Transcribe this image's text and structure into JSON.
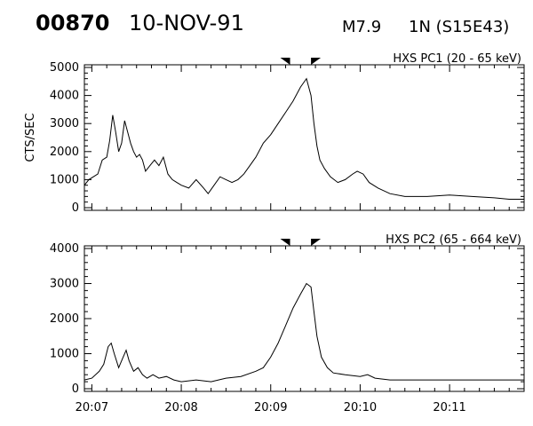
{
  "header": {
    "event_id": "00870",
    "date": "10-NOV-91",
    "goes_class": "M7.9",
    "location": "1N (S15E43)"
  },
  "chart_data": [
    {
      "type": "line",
      "title": "HXS PC1 (20 - 65 keV)",
      "ylabel": "CTS/SEC",
      "xlabel": "",
      "ylim": [
        0,
        5000
      ],
      "yticks": [
        0,
        1000,
        2000,
        3000,
        4000,
        5000
      ],
      "xlim": [
        "20:06:55",
        "20:11:50"
      ],
      "xticks": [
        "20:07",
        "20:08",
        "20:09",
        "20:10",
        "20:11"
      ],
      "markers": [
        "20:09:10",
        "20:09:30"
      ],
      "series": [
        {
          "x": [
            "20:06:55",
            "20:06:58",
            "20:07:01",
            "20:07:04",
            "20:07:07",
            "20:07:10",
            "20:07:12",
            "20:07:14",
            "20:07:16",
            "20:07:18",
            "20:07:20",
            "20:07:22",
            "20:07:24",
            "20:07:26",
            "20:07:28",
            "20:07:30",
            "20:07:32",
            "20:07:34",
            "20:07:36",
            "20:07:39",
            "20:07:42",
            "20:07:45",
            "20:07:48",
            "20:07:51",
            "20:07:54",
            "20:07:57",
            "20:08:00",
            "20:08:05",
            "20:08:10",
            "20:08:15",
            "20:08:18",
            "20:08:22",
            "20:08:26",
            "20:08:30",
            "20:08:34",
            "20:08:38",
            "20:08:42",
            "20:08:46",
            "20:08:50",
            "20:08:55",
            "20:09:00",
            "20:09:05",
            "20:09:10",
            "20:09:15",
            "20:09:20",
            "20:09:24",
            "20:09:27",
            "20:09:29",
            "20:09:31",
            "20:09:33",
            "20:09:36",
            "20:09:40",
            "20:09:45",
            "20:09:50",
            "20:09:55",
            "20:09:58",
            "20:10:02",
            "20:10:06",
            "20:10:12",
            "20:10:20",
            "20:10:30",
            "20:10:45",
            "20:11:00",
            "20:11:15",
            "20:11:30",
            "20:11:40",
            "20:11:50"
          ],
          "y": [
            800,
            1000,
            1100,
            1200,
            1700,
            1800,
            2400,
            3300,
            2700,
            2000,
            2300,
            3100,
            2700,
            2300,
            2000,
            1800,
            1900,
            1700,
            1300,
            1500,
            1700,
            1500,
            1800,
            1200,
            1000,
            900,
            800,
            700,
            1000,
            700,
            500,
            800,
            1100,
            1000,
            900,
            1000,
            1200,
            1500,
            1800,
            2300,
            2600,
            3000,
            3400,
            3800,
            4300,
            4600,
            4000,
            3000,
            2200,
            1700,
            1400,
            1100,
            900,
            1000,
            1200,
            1300,
            1200,
            900,
            700,
            500,
            400,
            400,
            450,
            400,
            350,
            300,
            300
          ]
        }
      ]
    },
    {
      "type": "line",
      "title": "HXS PC2 (65 - 664 keV)",
      "ylabel": "",
      "xlabel": "",
      "ylim": [
        0,
        4000
      ],
      "yticks": [
        0,
        1000,
        2000,
        3000,
        4000
      ],
      "xlim": [
        "20:06:55",
        "20:11:50"
      ],
      "xticks": [
        "20:07",
        "20:08",
        "20:09",
        "20:10",
        "20:11"
      ],
      "markers": [
        "20:09:10",
        "20:09:30"
      ],
      "series": [
        {
          "x": [
            "20:06:55",
            "20:07:00",
            "20:07:05",
            "20:07:08",
            "20:07:11",
            "20:07:13",
            "20:07:15",
            "20:07:18",
            "20:07:21",
            "20:07:23",
            "20:07:25",
            "20:07:28",
            "20:07:31",
            "20:07:34",
            "20:07:37",
            "20:07:41",
            "20:07:45",
            "20:07:50",
            "20:07:55",
            "20:08:00",
            "20:08:10",
            "20:08:20",
            "20:08:30",
            "20:08:40",
            "20:08:50",
            "20:08:55",
            "20:09:00",
            "20:09:05",
            "20:09:10",
            "20:09:15",
            "20:09:20",
            "20:09:24",
            "20:09:27",
            "20:09:29",
            "20:09:31",
            "20:09:34",
            "20:09:38",
            "20:09:42",
            "20:09:50",
            "20:10:00",
            "20:10:05",
            "20:10:10",
            "20:10:20",
            "20:10:30",
            "20:11:00",
            "20:11:30",
            "20:11:50"
          ],
          "y": [
            250,
            300,
            500,
            700,
            1200,
            1300,
            1000,
            600,
            900,
            1100,
            800,
            500,
            600,
            400,
            300,
            400,
            300,
            350,
            250,
            200,
            250,
            200,
            300,
            350,
            500,
            600,
            900,
            1300,
            1800,
            2300,
            2700,
            3000,
            2900,
            2200,
            1500,
            900,
            600,
            450,
            400,
            350,
            400,
            300,
            250,
            250,
            250,
            250,
            250
          ]
        }
      ]
    }
  ]
}
